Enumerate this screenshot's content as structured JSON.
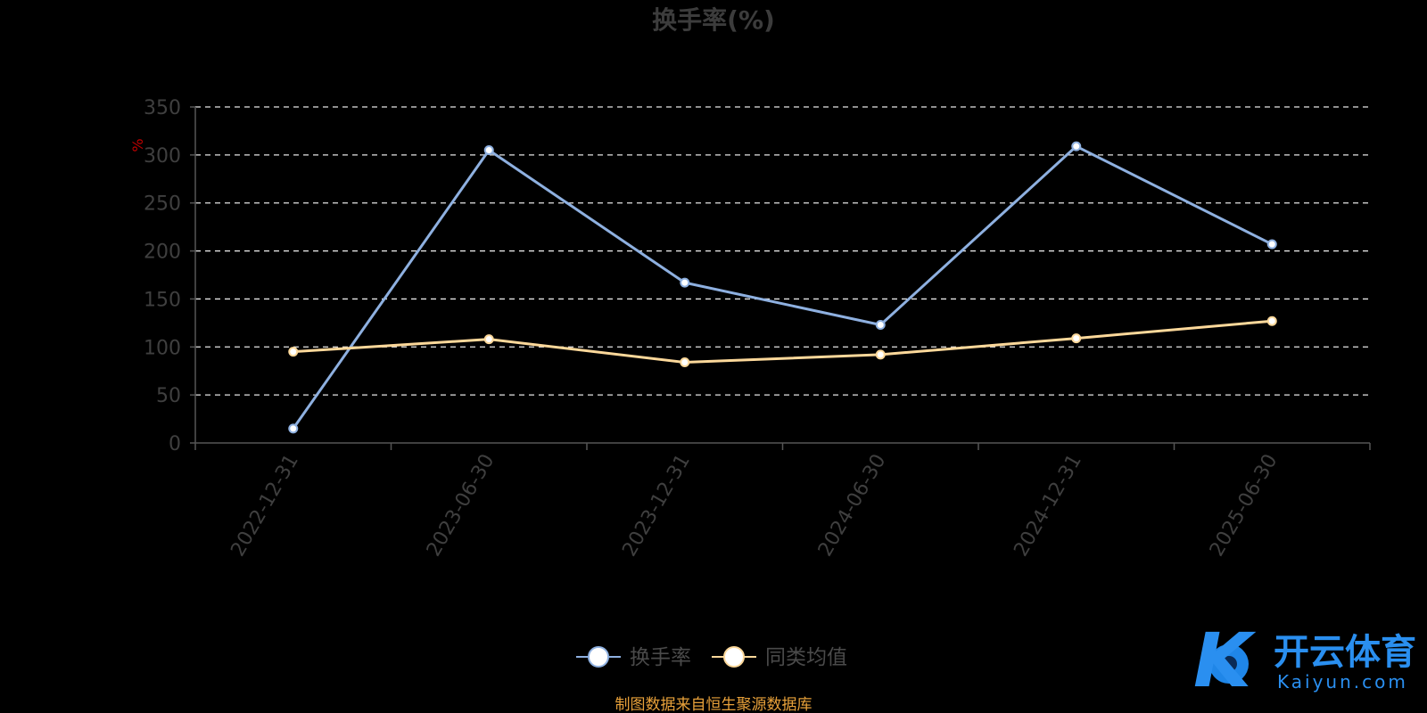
{
  "chart_data": {
    "type": "line",
    "title": "换手率(%)",
    "unit_label": "%",
    "categories": [
      "2022-12-31",
      "2023-06-30",
      "2023-12-31",
      "2024-06-30",
      "2024-12-31",
      "2025-06-30"
    ],
    "series": [
      {
        "name": "换手率",
        "color": "#8eb0e0",
        "values": [
          15,
          305,
          167,
          123,
          309,
          207
        ]
      },
      {
        "name": "同类均值",
        "color": "#fcd89a",
        "values": [
          95,
          108,
          84,
          92,
          109,
          127
        ]
      }
    ],
    "y_ticks": [
      0,
      50,
      100,
      150,
      200,
      250,
      300,
      350
    ],
    "ylim": [
      0,
      350
    ],
    "grid": true,
    "legend_position": "bottom-center"
  },
  "source_text": "制图数据来自恒生聚源数据库",
  "logo": {
    "main": "开云体育",
    "sub": "Kaiyun.com",
    "mark": "K"
  }
}
